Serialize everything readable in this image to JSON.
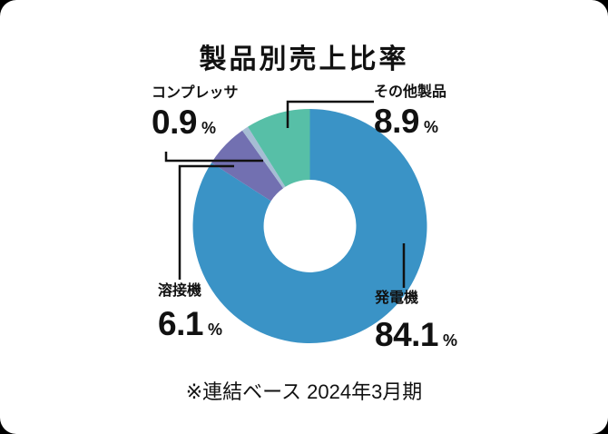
{
  "chart_data": {
    "type": "donut",
    "title": "製品別売上比率",
    "unit": "%",
    "direction": "clockwise",
    "start_angle_deg": 0,
    "inner_radius_ratio": 0.395,
    "total": 100,
    "segments": [
      {
        "key": "generator",
        "label": "発電機",
        "value": 84.1,
        "color": "#3A93C6"
      },
      {
        "key": "welder",
        "label": "溶接機",
        "value": 6.1,
        "color": "#7270B1"
      },
      {
        "key": "compressor",
        "label": "コンプレッサ",
        "value": 0.9,
        "color": "#A6BDD4"
      },
      {
        "key": "other-products",
        "label": "その他製品",
        "value": 8.9,
        "color": "#57BFA7"
      }
    ],
    "note": "※連結ベース 2024年3月期",
    "legend_position": "callout-labels",
    "grid": false
  }
}
